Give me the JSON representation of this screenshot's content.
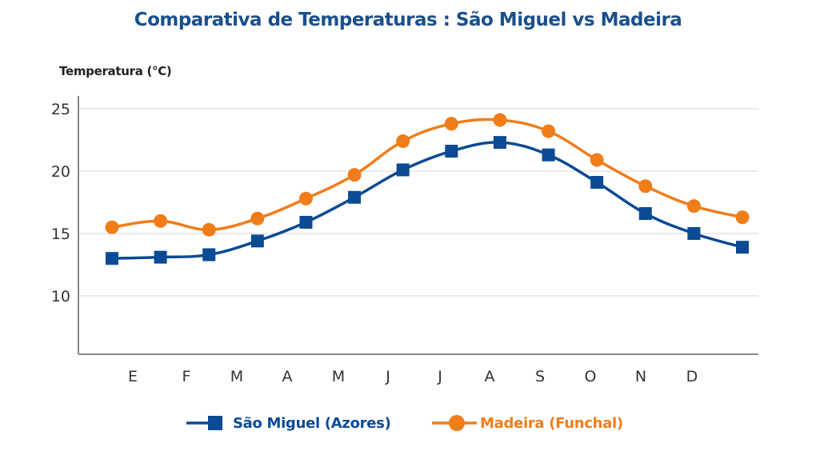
{
  "chart_data": {
    "type": "line",
    "title": "Comparativa de Temperaturas : São Miguel vs Madeira",
    "xlabel": "",
    "ylabel": "Temperatura (°C)",
    "categories": [
      "E",
      "F",
      "M",
      "A",
      "M",
      "J",
      "J",
      "A",
      "S",
      "O",
      "N",
      "D"
    ],
    "x_points": 14,
    "yticks": [
      10,
      15,
      20,
      25
    ],
    "ylim": [
      5.5,
      25.5
    ],
    "grid": true,
    "legend_position": "bottom",
    "series": [
      {
        "name": "São Miguel (Azores)",
        "color": "#0b4a94",
        "marker": "square",
        "values": [
          13.0,
          13.1,
          13.3,
          14.4,
          15.9,
          17.9,
          20.1,
          21.6,
          22.3,
          21.3,
          19.1,
          16.6,
          15.0,
          13.9
        ]
      },
      {
        "name": "Madeira (Funchal)",
        "color": "#f07d1a",
        "marker": "circle",
        "values": [
          15.5,
          16.0,
          15.3,
          16.2,
          17.8,
          19.7,
          22.4,
          23.8,
          24.1,
          23.2,
          20.9,
          18.8,
          17.2,
          16.3
        ]
      }
    ]
  }
}
